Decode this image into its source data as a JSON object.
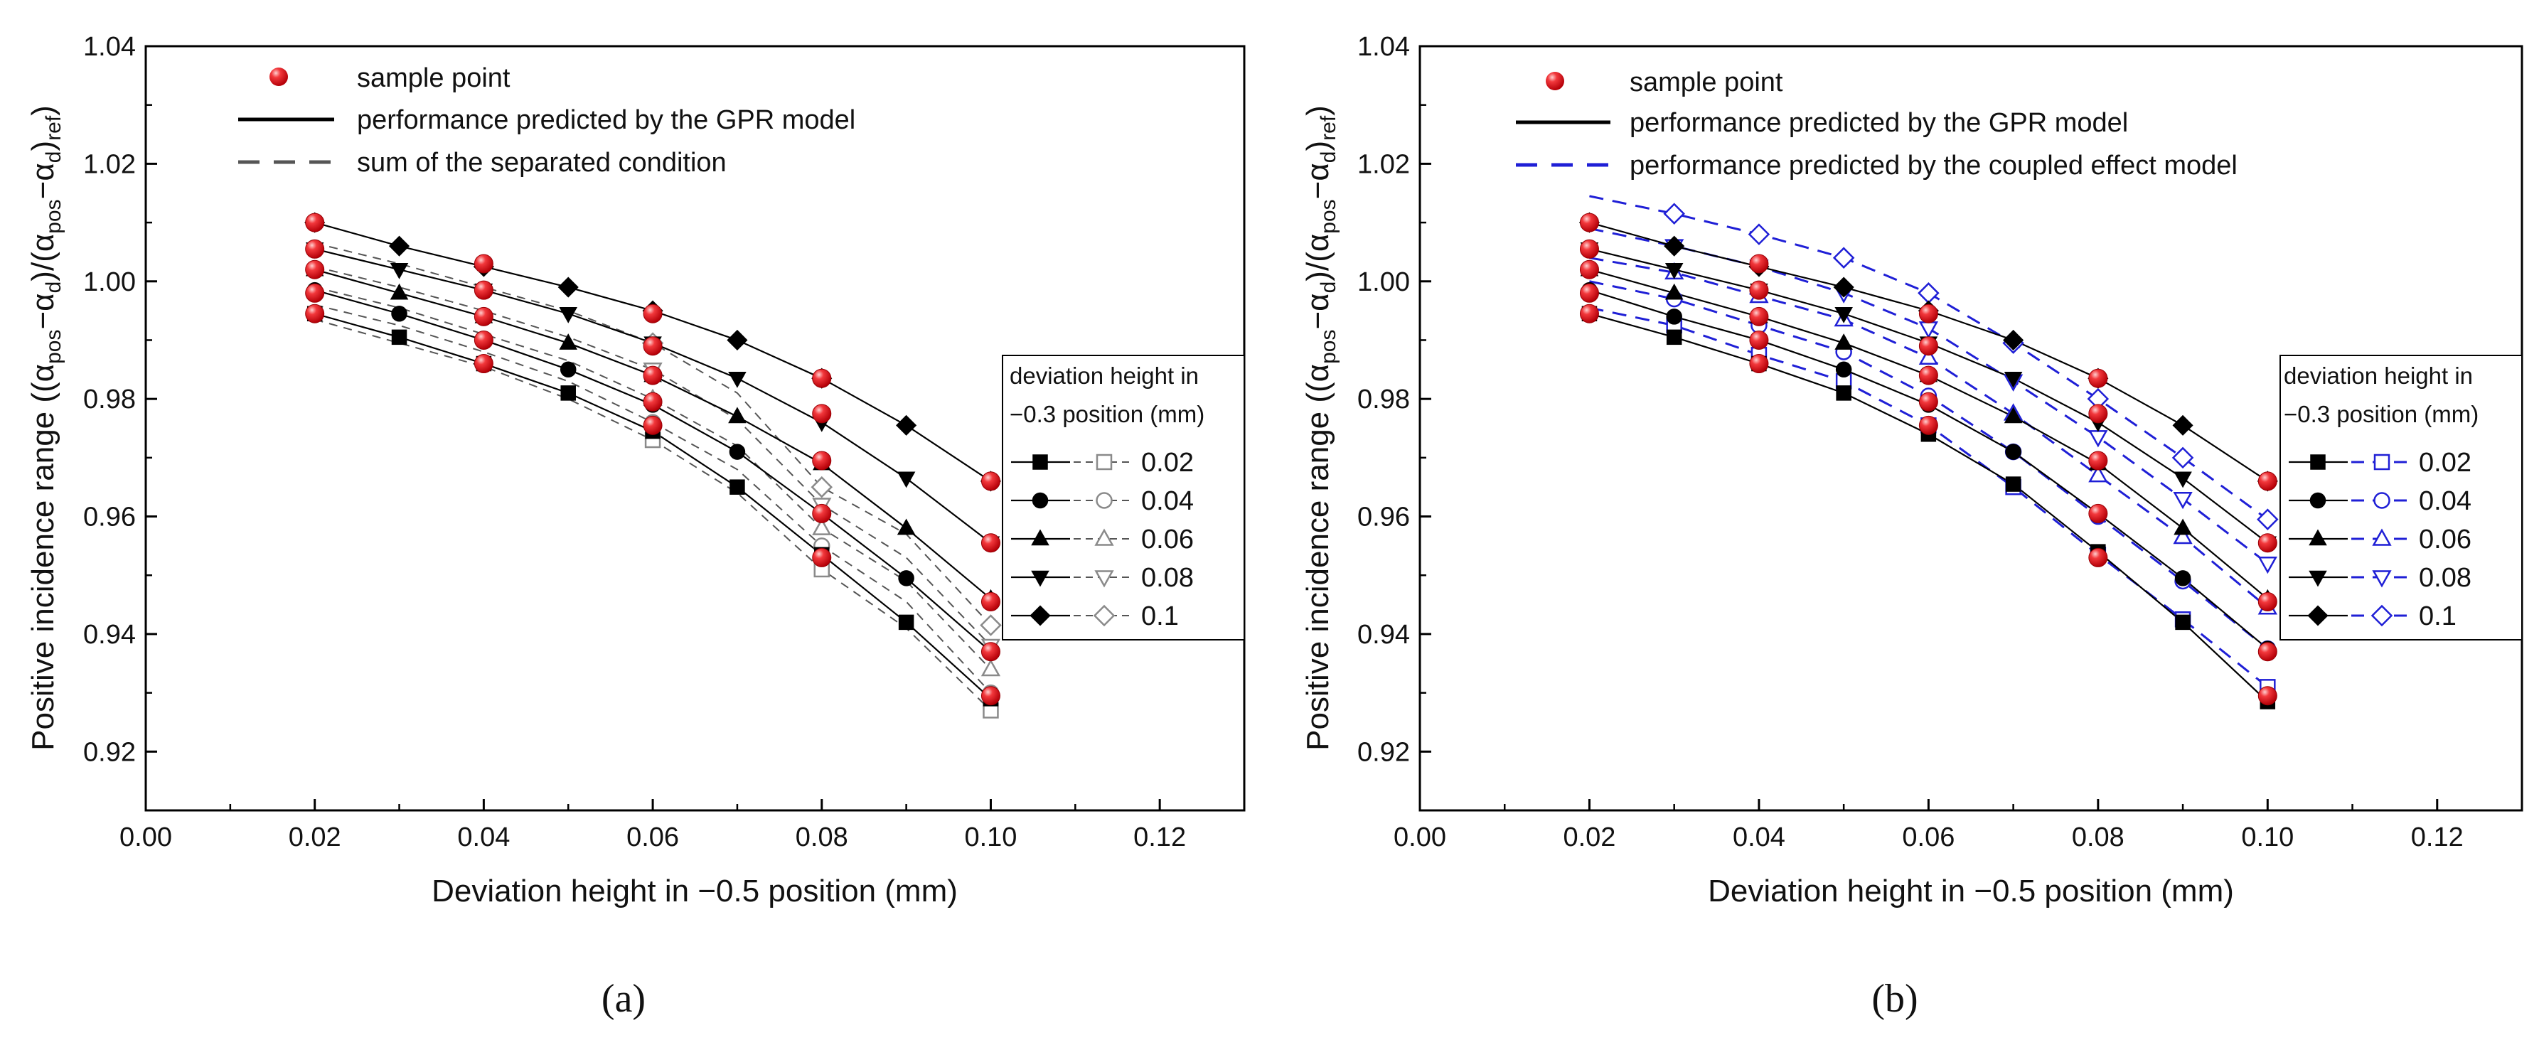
{
  "chart_data": [
    {
      "type": "line",
      "panel_label": "(a)",
      "xlabel": "Deviation height in −0.5 position (mm)",
      "ylabel": "Positive incidence range ((αpos−αd)/(αpos−αd)ref)",
      "ylabel_parts": {
        "open": "Positive incidence range ((",
        "a1": "α",
        "s1": "pos",
        "m1": "−α",
        "s2": "d",
        "mid": ")/(",
        "a2": "α",
        "s3": "pos",
        "m2": "−α",
        "s4": "d",
        "close": ")",
        "s5": "ref",
        "end": ")"
      },
      "xlim": [
        0.0,
        0.13
      ],
      "ylim": [
        0.91,
        1.04
      ],
      "xticks": [
        "0.00",
        "0.02",
        "0.04",
        "0.06",
        "0.08",
        "0.10",
        "0.12"
      ],
      "yticks": [
        "0.92",
        "0.94",
        "0.96",
        "0.98",
        "1.00",
        "1.02",
        "1.04"
      ],
      "legend_main": [
        "sample point",
        "performance predicted by the GPR model",
        "sum of the separated condition"
      ],
      "legend_group_title": [
        "deviation height in",
        "−0.3 position (mm)"
      ],
      "legend_group_labels": [
        "0.02",
        "0.04",
        "0.06",
        "0.08",
        "0.1"
      ],
      "x": [
        0.02,
        0.03,
        0.04,
        0.05,
        0.06,
        0.07,
        0.08,
        0.09,
        0.1
      ],
      "series": [
        {
          "name": "0.02",
          "marker": "square",
          "gpr": [
            0.9945,
            0.9905,
            0.986,
            0.981,
            0.9745,
            0.965,
            0.9535,
            0.942,
            0.929
          ],
          "sum": [
            0.9935,
            0.9895,
            0.9855,
            0.98,
            0.973,
            0.964,
            0.951,
            0.941,
            0.927
          ]
        },
        {
          "name": "0.04",
          "marker": "circle",
          "gpr": [
            0.9985,
            0.9945,
            0.99,
            0.985,
            0.979,
            0.971,
            0.9605,
            0.9495,
            0.937
          ],
          "sum": [
            0.996,
            0.9925,
            0.988,
            0.983,
            0.976,
            0.968,
            0.955,
            0.9455,
            0.93
          ]
        },
        {
          "name": "0.06",
          "marker": "triangle-up",
          "gpr": [
            1.002,
            0.998,
            0.994,
            0.9895,
            0.984,
            0.977,
            0.969,
            0.958,
            0.946
          ],
          "sum": [
            0.999,
            0.9955,
            0.991,
            0.9865,
            0.98,
            0.972,
            0.958,
            0.949,
            0.934
          ]
        },
        {
          "name": "0.08",
          "marker": "triangle-down",
          "gpr": [
            1.0055,
            1.002,
            0.9985,
            0.9945,
            0.9895,
            0.9835,
            0.976,
            0.9665,
            0.9555
          ],
          "sum": [
            1.0025,
            0.999,
            0.995,
            0.9905,
            0.985,
            0.9765,
            0.962,
            0.953,
            0.938
          ]
        },
        {
          "name": "0.1",
          "marker": "diamond",
          "gpr": [
            1.01,
            1.006,
            1.0025,
            0.999,
            0.995,
            0.99,
            0.9835,
            0.9755,
            0.966
          ],
          "sum": [
            1.0065,
            1.003,
            0.999,
            0.995,
            0.9895,
            0.981,
            0.965,
            0.957,
            0.9415
          ]
        }
      ],
      "sample_points": [
        {
          "x": 0.02,
          "y": [
            0.9945,
            0.998,
            1.002,
            1.0055,
            1.01
          ]
        },
        {
          "x": 0.04,
          "y": [
            0.986,
            0.99,
            0.994,
            0.9985,
            1.003
          ]
        },
        {
          "x": 0.06,
          "y": [
            0.9755,
            0.9795,
            0.984,
            0.989,
            0.9945
          ]
        },
        {
          "x": 0.08,
          "y": [
            0.953,
            0.9605,
            0.9695,
            0.9775,
            0.9835
          ]
        },
        {
          "x": 0.1,
          "y": [
            0.9295,
            0.937,
            0.9455,
            0.9555,
            0.966
          ]
        }
      ]
    },
    {
      "type": "line",
      "panel_label": "(b)",
      "xlabel": "Deviation height in −0.5 position (mm)",
      "ylabel": "Positive incidence range ((αpos−αd)/(αpos−αd)ref)",
      "ylabel_parts": {
        "open": "Positive incidence range ((",
        "a1": "α",
        "s1": "pos",
        "m1": "−α",
        "s2": "d",
        "mid": ")/(",
        "a2": "α",
        "s3": "pos",
        "m2": "−α",
        "s4": "d",
        "close": ")",
        "s5": "ref",
        "end": ")"
      },
      "xlim": [
        0.0,
        0.13
      ],
      "ylim": [
        0.91,
        1.04
      ],
      "xticks": [
        "0.00",
        "0.02",
        "0.04",
        "0.06",
        "0.08",
        "0.10",
        "0.12"
      ],
      "yticks": [
        "0.92",
        "0.94",
        "0.96",
        "0.98",
        "1.00",
        "1.02",
        "1.04"
      ],
      "legend_main": [
        "sample point",
        "performance predicted by the GPR model",
        "performance predicted by the coupled effect model"
      ],
      "legend_group_title": [
        "deviation height in",
        "−0.3 position (mm)"
      ],
      "legend_group_labels": [
        "0.02",
        "0.04",
        "0.06",
        "0.08",
        "0.1"
      ],
      "x": [
        0.02,
        0.03,
        0.04,
        0.05,
        0.06,
        0.07,
        0.08,
        0.09,
        0.1
      ],
      "series": [
        {
          "name": "0.02",
          "marker": "square",
          "gpr": [
            0.9945,
            0.9905,
            0.986,
            0.981,
            0.974,
            0.9655,
            0.954,
            0.942,
            0.9285
          ],
          "coupled": [
            0.9955,
            0.9925,
            0.9875,
            0.983,
            0.9755,
            0.965,
            0.9535,
            0.9425,
            0.931
          ]
        },
        {
          "name": "0.04",
          "marker": "circle",
          "gpr": [
            0.9985,
            0.994,
            0.99,
            0.985,
            0.979,
            0.971,
            0.9605,
            0.9495,
            0.9375
          ],
          "coupled": [
            1.0,
            0.997,
            0.9925,
            0.988,
            0.9805,
            0.971,
            0.96,
            0.949,
            0.9375
          ]
        },
        {
          "name": "0.06",
          "marker": "triangle-up",
          "gpr": [
            1.002,
            0.998,
            0.994,
            0.9895,
            0.984,
            0.977,
            0.969,
            0.958,
            0.946
          ],
          "coupled": [
            1.004,
            1.0015,
            0.9975,
            0.9935,
            0.987,
            0.9775,
            0.967,
            0.9565,
            0.9445
          ]
        },
        {
          "name": "0.08",
          "marker": "triangle-down",
          "gpr": [
            1.0055,
            1.002,
            0.9985,
            0.9945,
            0.9895,
            0.9835,
            0.976,
            0.9665,
            0.9555
          ],
          "coupled": [
            1.009,
            1.006,
            1.0025,
            0.998,
            0.992,
            0.983,
            0.9735,
            0.963,
            0.952
          ]
        },
        {
          "name": "0.1",
          "marker": "diamond",
          "gpr": [
            1.01,
            1.006,
            1.0025,
            0.999,
            0.995,
            0.99,
            0.9835,
            0.9755,
            0.966
          ],
          "coupled": [
            1.0145,
            1.0115,
            1.008,
            1.004,
            0.998,
            0.9895,
            0.98,
            0.97,
            0.9595
          ]
        }
      ],
      "sample_points": [
        {
          "x": 0.02,
          "y": [
            0.9945,
            0.998,
            1.002,
            1.0055,
            1.01
          ]
        },
        {
          "x": 0.04,
          "y": [
            0.986,
            0.99,
            0.994,
            0.9985,
            1.003
          ]
        },
        {
          "x": 0.06,
          "y": [
            0.9755,
            0.9795,
            0.984,
            0.989,
            0.9945
          ]
        },
        {
          "x": 0.08,
          "y": [
            0.953,
            0.9605,
            0.9695,
            0.9775,
            0.9835
          ]
        },
        {
          "x": 0.1,
          "y": [
            0.9295,
            0.937,
            0.9455,
            0.9555,
            0.966
          ]
        }
      ]
    }
  ],
  "colors": {
    "gpr_line": "#000000",
    "sum_line": "#555555",
    "sum_marker": "#8a8a8a",
    "coupled_line": "#1f1fd6",
    "sample_point": "#e8111a"
  }
}
